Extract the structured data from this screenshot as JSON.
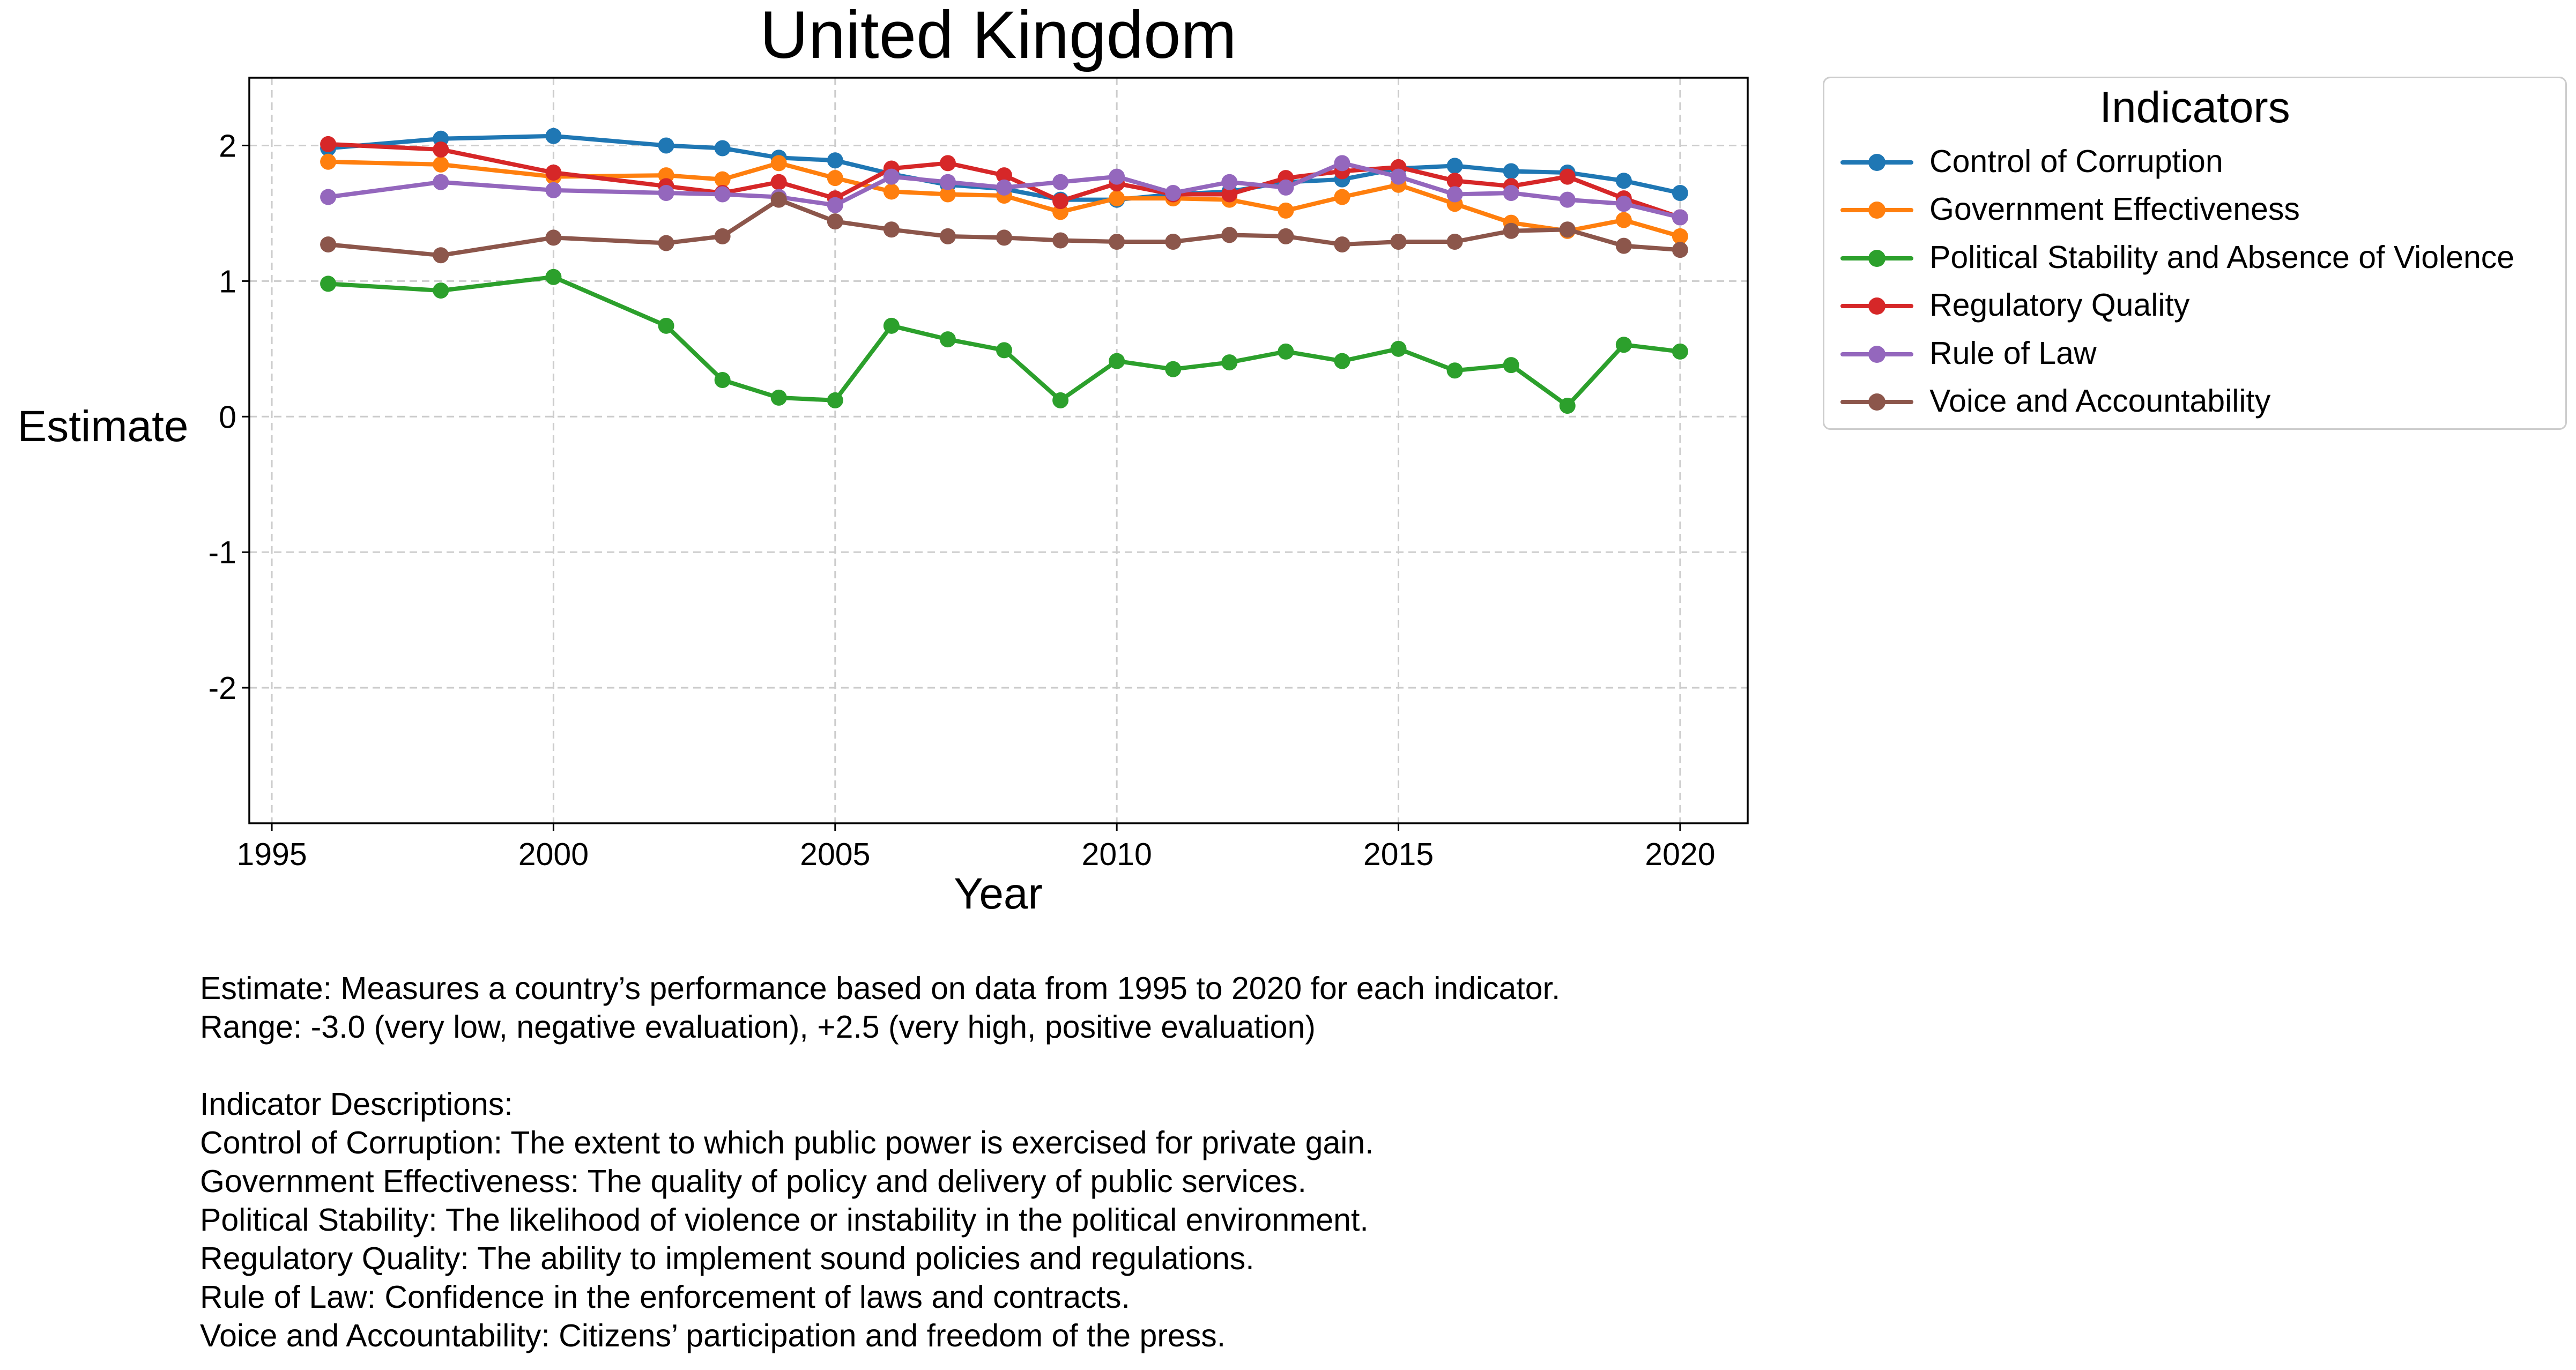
{
  "chart_data": {
    "type": "line",
    "title": "United Kingdom",
    "xlabel": "Year",
    "ylabel": "Estimate",
    "xlim": [
      1994.6,
      2021.2
    ],
    "ylim": [
      -3.0,
      2.5
    ],
    "x_ticks": [
      1995,
      2000,
      2005,
      2010,
      2015,
      2020
    ],
    "y_ticks": [
      -2,
      -1,
      0,
      1,
      2
    ],
    "grid": true,
    "markers": true,
    "legend_title": "Indicators",
    "legend_position": "outside upper right",
    "x": [
      1996,
      1998,
      2000,
      2002,
      2003,
      2004,
      2005,
      2006,
      2007,
      2008,
      2009,
      2010,
      2011,
      2012,
      2013,
      2014,
      2015,
      2016,
      2017,
      2018,
      2019,
      2020
    ],
    "series": [
      {
        "name": "Control of Corruption",
        "color": "#1f77b4",
        "values": [
          1.98,
          2.05,
          2.07,
          2.0,
          1.98,
          1.91,
          1.89,
          1.79,
          1.71,
          1.68,
          1.6,
          1.6,
          1.64,
          1.66,
          1.73,
          1.75,
          1.83,
          1.85,
          1.81,
          1.8,
          1.74,
          1.65
        ]
      },
      {
        "name": "Government Effectiveness",
        "color": "#ff7f0e",
        "values": [
          1.88,
          1.86,
          1.77,
          1.78,
          1.75,
          1.87,
          1.76,
          1.66,
          1.64,
          1.63,
          1.51,
          1.61,
          1.61,
          1.6,
          1.52,
          1.62,
          1.71,
          1.57,
          1.43,
          1.37,
          1.45,
          1.33
        ]
      },
      {
        "name": "Political Stability and Absence of Violence",
        "color": "#2ca02c",
        "values": [
          0.98,
          0.93,
          1.03,
          0.67,
          0.27,
          0.14,
          0.12,
          0.67,
          0.57,
          0.49,
          0.12,
          0.41,
          0.35,
          0.4,
          0.48,
          0.41,
          0.5,
          0.34,
          0.38,
          0.08,
          0.53,
          0.48
        ]
      },
      {
        "name": "Regulatory Quality",
        "color": "#d62728",
        "values": [
          2.01,
          1.97,
          1.8,
          1.7,
          1.65,
          1.73,
          1.61,
          1.83,
          1.87,
          1.78,
          1.59,
          1.72,
          1.64,
          1.64,
          1.76,
          1.81,
          1.84,
          1.74,
          1.7,
          1.77,
          1.61,
          1.47
        ]
      },
      {
        "name": "Rule of Law",
        "color": "#9467bd",
        "values": [
          1.62,
          1.73,
          1.67,
          1.65,
          1.64,
          1.62,
          1.56,
          1.77,
          1.73,
          1.69,
          1.73,
          1.77,
          1.65,
          1.73,
          1.69,
          1.87,
          1.77,
          1.64,
          1.65,
          1.6,
          1.57,
          1.47
        ]
      },
      {
        "name": "Voice and Accountability",
        "color": "#8c564b",
        "values": [
          1.27,
          1.19,
          1.32,
          1.28,
          1.33,
          1.6,
          1.44,
          1.38,
          1.33,
          1.32,
          1.3,
          1.29,
          1.29,
          1.34,
          1.33,
          1.27,
          1.29,
          1.29,
          1.37,
          1.38,
          1.26,
          1.23
        ]
      }
    ]
  },
  "legend": {
    "title": "Indicators",
    "items": [
      "Control of Corruption",
      "Government Effectiveness",
      "Political Stability and Absence of Violence",
      "Regulatory Quality",
      "Rule of Law",
      "Voice and Accountability"
    ]
  },
  "notes": {
    "estimate": "Estimate: Measures a country’s performance based on data from 1995 to 2020 for each indicator.",
    "range": "Range: -3.0 (very low, negative evaluation), +2.5 (very high, positive evaluation)",
    "descriptions_heading": "Indicator Descriptions:",
    "descriptions": [
      "Control of Corruption: The extent to which public power is exercised for private gain.",
      "Government Effectiveness: The quality of policy and delivery of public services.",
      "Political Stability: The likelihood of violence or instability in the political environment.",
      "Regulatory Quality: The ability to implement sound policies and regulations.",
      "Rule of Law: Confidence in the enforcement of laws and contracts.",
      "Voice and Accountability: Citizens’ participation and freedom of the press."
    ]
  }
}
